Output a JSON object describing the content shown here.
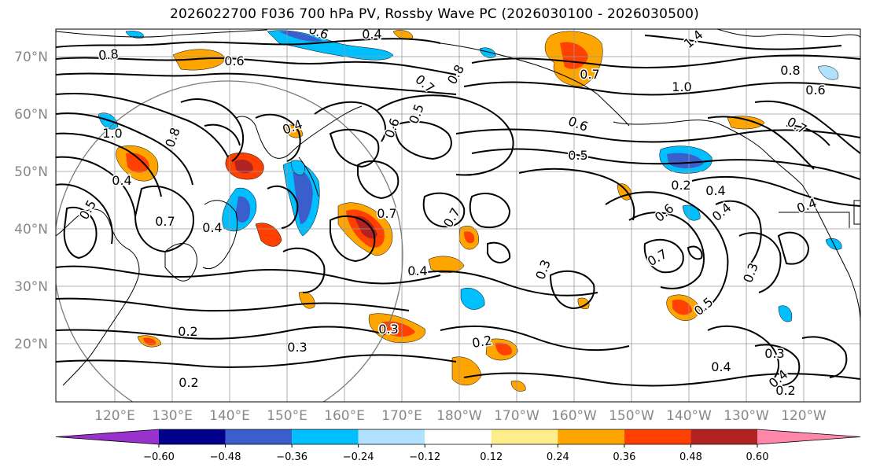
{
  "title": "2026022700 F036 700 hPa PV, Rossby Wave PC (2026030100 - 2026030500)",
  "lat_labels": [
    "70°N",
    "60°N",
    "50°N",
    "40°N",
    "30°N",
    "20°N"
  ],
  "lon_labels": [
    "120°E",
    "130°E",
    "140°E",
    "150°E",
    "160°E",
    "170°E",
    "180°W",
    "170°W",
    "160°W",
    "150°W",
    "140°W",
    "130°W",
    "120°W"
  ],
  "colorbar": {
    "colors": [
      "#9932cc",
      "#00008b",
      "#3a5fcd",
      "#00bfff",
      "#b0e2ff",
      "#ffffff",
      "#ffec8b",
      "#ffa500",
      "#ff4000",
      "#b22222",
      "#ff88aa"
    ],
    "tick_labels": [
      "−0.60",
      "−0.48",
      "−0.36",
      "−0.24",
      "−0.12",
      "0.12",
      "0.24",
      "0.36",
      "0.48",
      "0.60"
    ]
  },
  "contour_labels": [
    "0.4",
    "0.6",
    "0.8",
    "0.6",
    "1.0",
    "0.8",
    "0.4",
    "0.5",
    "0.4",
    "0.5",
    "0.6",
    "0.7",
    "0.8",
    "1.4",
    "1.0",
    "0.8",
    "0.6",
    "0.7",
    "0.6",
    "0.7",
    "0.5",
    "0.4",
    "0.2",
    "0.6",
    "0.4",
    "0.7",
    "0.7",
    "0.7",
    "0.4",
    "0.3",
    "0.7",
    "0.3",
    "0.3",
    "0.2",
    "0.3",
    "0.2",
    "0.4",
    "0.2",
    "0.2",
    "0.3",
    "0.4",
    "0.5",
    "0.4",
    "0.4"
  ]
}
